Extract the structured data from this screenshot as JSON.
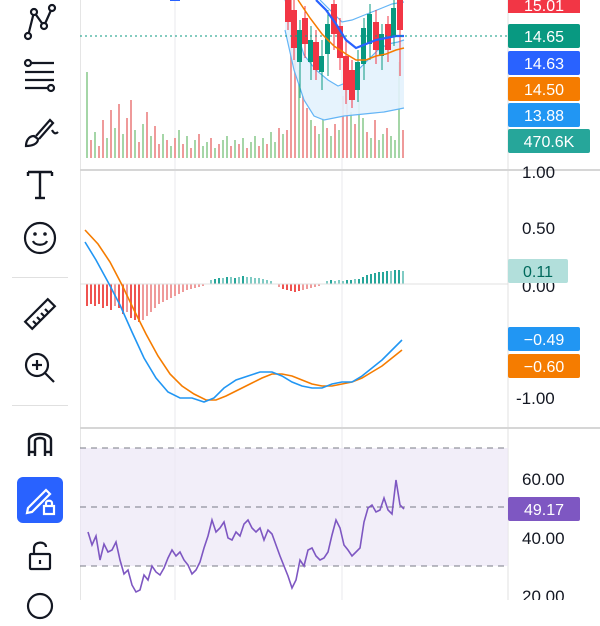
{
  "toolbar": {
    "items": [
      {
        "name": "pattern-tool-icon"
      },
      {
        "name": "fib-retracement-icon"
      },
      {
        "name": "brush-icon"
      },
      {
        "name": "text-tool-icon"
      },
      {
        "name": "emoji-icon"
      },
      {
        "name": "ruler-icon"
      },
      {
        "name": "zoom-in-icon"
      },
      {
        "name": "magnet-icon"
      },
      {
        "name": "lock-drawing-icon",
        "active": true
      },
      {
        "name": "unlock-icon"
      }
    ]
  },
  "price_panel": {
    "tags": [
      {
        "label": "15.01",
        "color": "#f23645"
      },
      {
        "label": "14.65",
        "color": "#089981"
      },
      {
        "label": "14.63",
        "color": "#2962ff"
      },
      {
        "label": "14.50",
        "color": "#f57c00"
      },
      {
        "label": "13.88",
        "color": "#2196f3"
      },
      {
        "label": "470.6K",
        "color": "#26a69a"
      }
    ]
  },
  "macd_panel": {
    "axis_labels": [
      "1.00",
      "0.50",
      "0.00",
      "-1.00"
    ],
    "tags": [
      {
        "label": "0.11",
        "color": "#b2dfdb",
        "text_color": "#00695c"
      },
      {
        "label": "−0.49",
        "color": "#2196f3",
        "text_color": "#ffffff"
      },
      {
        "label": "−0.60",
        "color": "#f57c00",
        "text_color": "#ffffff"
      }
    ],
    "colors": {
      "macd": "#2196f3",
      "signal": "#f57c00",
      "hist_pos": "#26a69a",
      "hist_neg": "#ef5350"
    }
  },
  "rsi_panel": {
    "axis_labels": [
      "60.00",
      "40.00",
      "20.00"
    ],
    "tags": [
      {
        "label": "49.17",
        "color": "#7e57c2"
      }
    ],
    "colors": {
      "line": "#7e57c2",
      "band": "#ede7f6"
    }
  }
}
